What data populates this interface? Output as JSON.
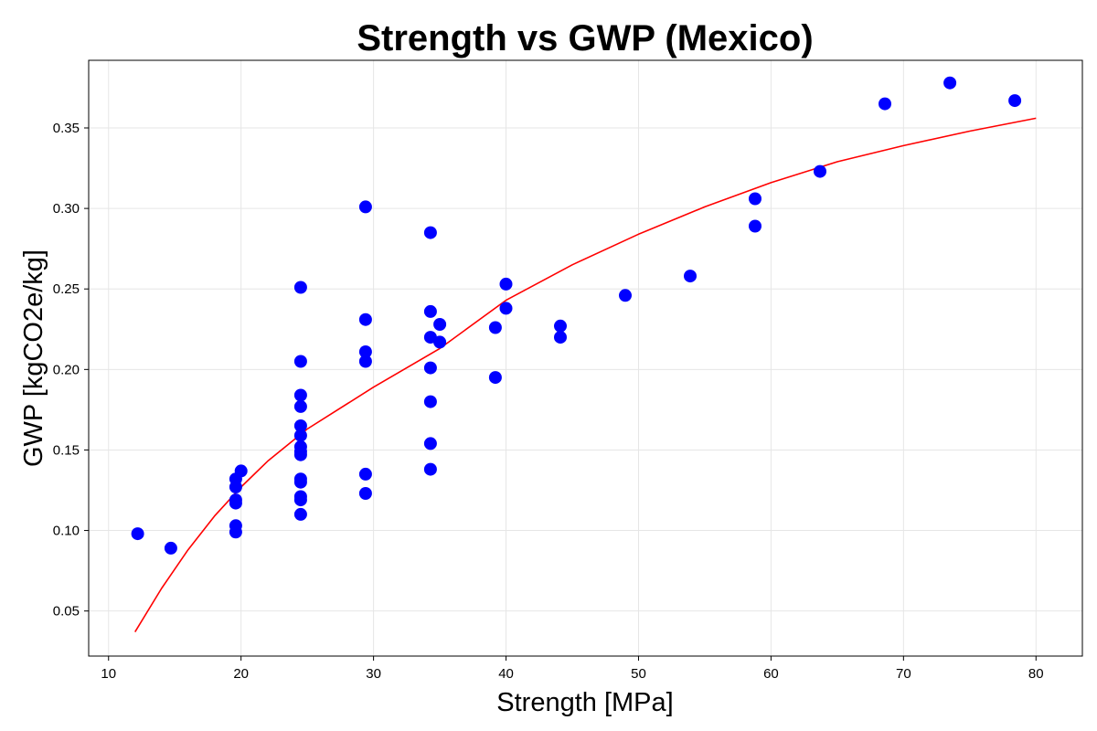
{
  "chart_data": {
    "type": "scatter",
    "title": "Strength vs GWP (Mexico)",
    "xlabel": "Strength [MPa]",
    "ylabel": "GWP [kgCO2e/kg]",
    "xlim": [
      8.5,
      83.5
    ],
    "ylim": [
      0.022,
      0.392
    ],
    "xticks": [
      10,
      20,
      30,
      40,
      50,
      60,
      70,
      80
    ],
    "yticks": [
      0.05,
      0.1,
      0.15,
      0.2,
      0.25,
      0.3,
      0.35
    ],
    "xtick_labels": [
      "10",
      "20",
      "30",
      "40",
      "50",
      "60",
      "70",
      "80"
    ],
    "ytick_labels": [
      "0.05",
      "0.10",
      "0.15",
      "0.20",
      "0.25",
      "0.30",
      "0.35"
    ],
    "grid": true,
    "series": [
      {
        "type": "scatter",
        "color": "#0000ff",
        "points": [
          [
            12.2,
            0.098
          ],
          [
            14.7,
            0.089
          ],
          [
            19.6,
            0.132
          ],
          [
            19.6,
            0.127
          ],
          [
            19.6,
            0.119
          ],
          [
            19.6,
            0.117
          ],
          [
            19.6,
            0.103
          ],
          [
            19.6,
            0.099
          ],
          [
            20.0,
            0.137
          ],
          [
            24.5,
            0.251
          ],
          [
            24.5,
            0.205
          ],
          [
            24.5,
            0.184
          ],
          [
            24.5,
            0.177
          ],
          [
            24.5,
            0.165
          ],
          [
            24.5,
            0.159
          ],
          [
            24.5,
            0.152
          ],
          [
            24.5,
            0.149
          ],
          [
            24.5,
            0.147
          ],
          [
            24.5,
            0.132
          ],
          [
            24.5,
            0.13
          ],
          [
            24.5,
            0.121
          ],
          [
            24.5,
            0.119
          ],
          [
            24.5,
            0.11
          ],
          [
            29.4,
            0.301
          ],
          [
            29.4,
            0.231
          ],
          [
            29.4,
            0.211
          ],
          [
            29.4,
            0.205
          ],
          [
            29.4,
            0.135
          ],
          [
            29.4,
            0.123
          ],
          [
            34.3,
            0.285
          ],
          [
            34.3,
            0.236
          ],
          [
            34.3,
            0.22
          ],
          [
            34.3,
            0.201
          ],
          [
            34.3,
            0.18
          ],
          [
            34.3,
            0.154
          ],
          [
            34.3,
            0.138
          ],
          [
            35.0,
            0.228
          ],
          [
            35.0,
            0.217
          ],
          [
            39.2,
            0.226
          ],
          [
            39.2,
            0.195
          ],
          [
            40.0,
            0.253
          ],
          [
            40.0,
            0.238
          ],
          [
            44.1,
            0.227
          ],
          [
            44.1,
            0.22
          ],
          [
            49.0,
            0.246
          ],
          [
            53.9,
            0.258
          ],
          [
            58.8,
            0.306
          ],
          [
            58.8,
            0.289
          ],
          [
            63.7,
            0.323
          ],
          [
            68.6,
            0.365
          ],
          [
            73.5,
            0.378
          ],
          [
            78.4,
            0.367
          ]
        ]
      },
      {
        "type": "line",
        "color": "#ff0000",
        "points": [
          [
            12,
            0.037
          ],
          [
            14,
            0.064
          ],
          [
            16,
            0.088
          ],
          [
            18,
            0.109
          ],
          [
            20,
            0.127
          ],
          [
            22,
            0.143
          ],
          [
            25,
            0.163
          ],
          [
            30,
            0.189
          ],
          [
            35,
            0.213
          ],
          [
            40,
            0.243
          ],
          [
            45,
            0.265
          ],
          [
            50,
            0.284
          ],
          [
            55,
            0.301
          ],
          [
            60,
            0.316
          ],
          [
            65,
            0.329
          ],
          [
            70,
            0.339
          ],
          [
            75,
            0.348
          ],
          [
            80,
            0.356
          ]
        ]
      }
    ]
  }
}
